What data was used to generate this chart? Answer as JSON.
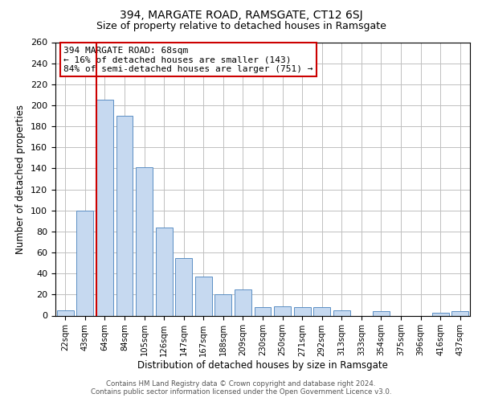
{
  "title": "394, MARGATE ROAD, RAMSGATE, CT12 6SJ",
  "subtitle": "Size of property relative to detached houses in Ramsgate",
  "xlabel": "Distribution of detached houses by size in Ramsgate",
  "ylabel": "Number of detached properties",
  "bar_labels": [
    "22sqm",
    "43sqm",
    "64sqm",
    "84sqm",
    "105sqm",
    "126sqm",
    "147sqm",
    "167sqm",
    "188sqm",
    "209sqm",
    "230sqm",
    "250sqm",
    "271sqm",
    "292sqm",
    "313sqm",
    "333sqm",
    "354sqm",
    "375sqm",
    "396sqm",
    "416sqm",
    "437sqm"
  ],
  "bar_heights": [
    5,
    100,
    205,
    190,
    141,
    84,
    55,
    37,
    20,
    25,
    8,
    9,
    8,
    8,
    5,
    0,
    4,
    0,
    0,
    3,
    4
  ],
  "bar_color": "#c6d9f0",
  "bar_edge_color": "#5b8fc4",
  "vline_x": 2.0,
  "vline_color": "#cc0000",
  "annotation_title": "394 MARGATE ROAD: 68sqm",
  "annotation_line1": "← 16% of detached houses are smaller (143)",
  "annotation_line2": "84% of semi-detached houses are larger (751) →",
  "annotation_box_edge": "#cc0000",
  "ylim": [
    0,
    260
  ],
  "yticks": [
    0,
    20,
    40,
    60,
    80,
    100,
    120,
    140,
    160,
    180,
    200,
    220,
    240,
    260
  ],
  "footer_line1": "Contains HM Land Registry data © Crown copyright and database right 2024.",
  "footer_line2": "Contains public sector information licensed under the Open Government Licence v3.0.",
  "background_color": "#ffffff",
  "grid_color": "#c0c0c0"
}
